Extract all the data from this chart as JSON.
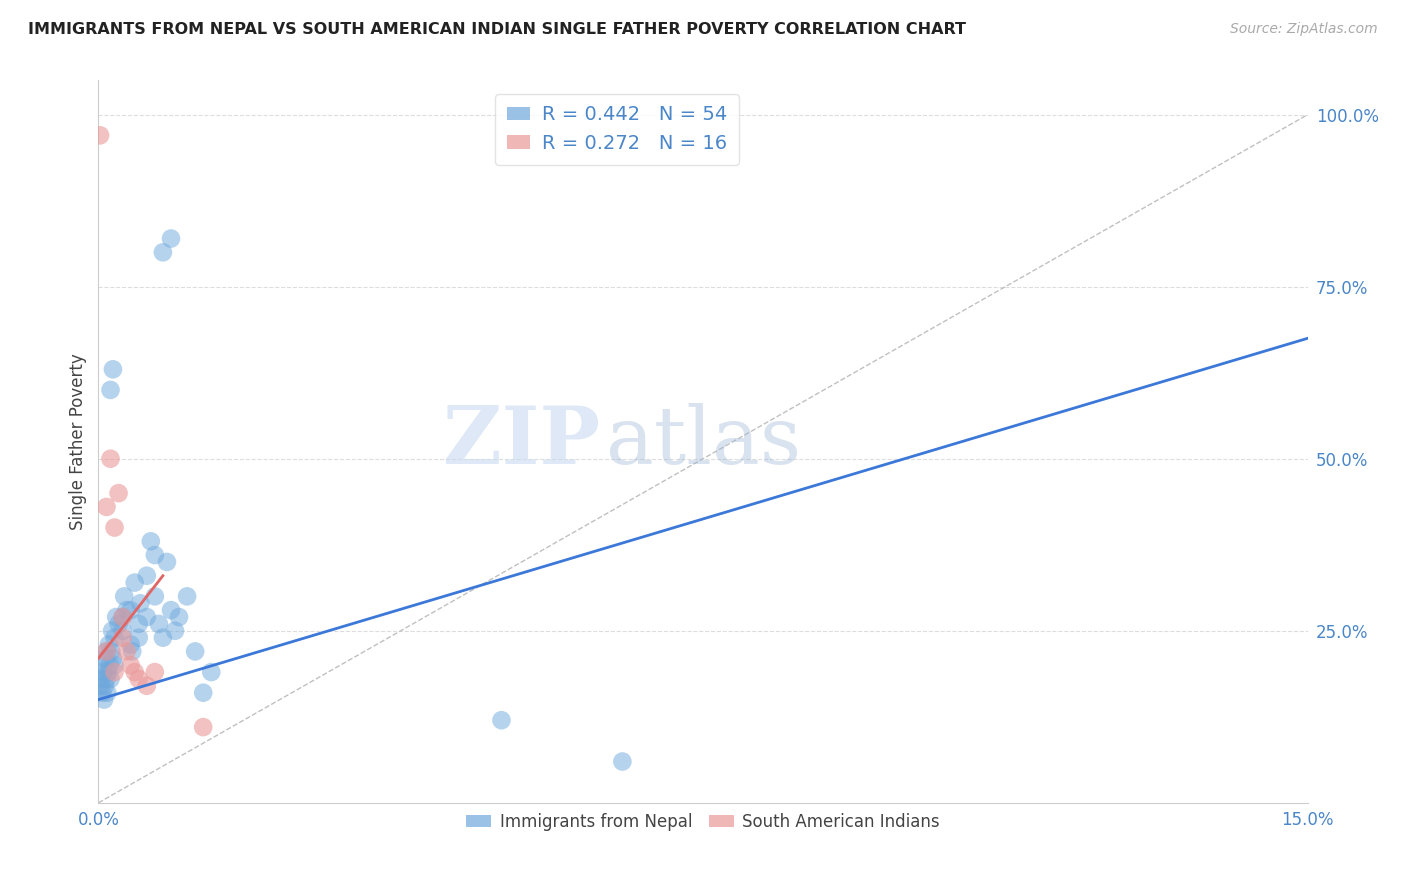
{
  "title": "IMMIGRANTS FROM NEPAL VS SOUTH AMERICAN INDIAN SINGLE FATHER POVERTY CORRELATION CHART",
  "source": "Source: ZipAtlas.com",
  "ylabel": "Single Father Poverty",
  "xlim": [
    0.0,
    0.15
  ],
  "ylim": [
    0.0,
    1.05
  ],
  "yticks": [
    0.0,
    0.25,
    0.5,
    0.75,
    1.0
  ],
  "ytick_labels": [
    "",
    "25.0%",
    "50.0%",
    "75.0%",
    "100.0%"
  ],
  "xticks": [
    0.0,
    0.05,
    0.1,
    0.15
  ],
  "xtick_labels": [
    "0.0%",
    "",
    "",
    "15.0%"
  ],
  "nepal_color": "#6fa8dc",
  "sa_indian_color": "#ea9999",
  "nepal_R": 0.442,
  "nepal_N": 54,
  "sa_indian_R": 0.272,
  "sa_indian_N": 16,
  "legend_label_1": "Immigrants from Nepal",
  "legend_label_2": "South American Indians",
  "watermark_zip": "ZIP",
  "watermark_atlas": "atlas",
  "nepal_points": [
    [
      0.0002,
      0.17
    ],
    [
      0.0003,
      0.2
    ],
    [
      0.0004,
      0.18
    ],
    [
      0.0005,
      0.16
    ],
    [
      0.0006,
      0.19
    ],
    [
      0.0007,
      0.15
    ],
    [
      0.0008,
      0.17
    ],
    [
      0.0009,
      0.21
    ],
    [
      0.001,
      0.22
    ],
    [
      0.001,
      0.18
    ],
    [
      0.0011,
      0.16
    ],
    [
      0.0012,
      0.19
    ],
    [
      0.0013,
      0.23
    ],
    [
      0.0014,
      0.2
    ],
    [
      0.0015,
      0.18
    ],
    [
      0.0016,
      0.22
    ],
    [
      0.0017,
      0.25
    ],
    [
      0.0018,
      0.21
    ],
    [
      0.002,
      0.24
    ],
    [
      0.002,
      0.2
    ],
    [
      0.0022,
      0.27
    ],
    [
      0.0025,
      0.26
    ],
    [
      0.003,
      0.27
    ],
    [
      0.003,
      0.25
    ],
    [
      0.0032,
      0.3
    ],
    [
      0.0035,
      0.28
    ],
    [
      0.004,
      0.23
    ],
    [
      0.004,
      0.28
    ],
    [
      0.0042,
      0.22
    ],
    [
      0.0045,
      0.32
    ],
    [
      0.005,
      0.26
    ],
    [
      0.005,
      0.24
    ],
    [
      0.0052,
      0.29
    ],
    [
      0.006,
      0.33
    ],
    [
      0.006,
      0.27
    ],
    [
      0.0065,
      0.38
    ],
    [
      0.007,
      0.36
    ],
    [
      0.007,
      0.3
    ],
    [
      0.0075,
      0.26
    ],
    [
      0.008,
      0.24
    ],
    [
      0.0085,
      0.35
    ],
    [
      0.009,
      0.28
    ],
    [
      0.0095,
      0.25
    ],
    [
      0.01,
      0.27
    ],
    [
      0.011,
      0.3
    ],
    [
      0.012,
      0.22
    ],
    [
      0.013,
      0.16
    ],
    [
      0.014,
      0.19
    ],
    [
      0.0015,
      0.6
    ],
    [
      0.0018,
      0.63
    ],
    [
      0.008,
      0.8
    ],
    [
      0.009,
      0.82
    ],
    [
      0.05,
      0.12
    ],
    [
      0.065,
      0.06
    ]
  ],
  "sa_indian_points": [
    [
      0.0002,
      0.97
    ],
    [
      0.001,
      0.43
    ],
    [
      0.0015,
      0.5
    ],
    [
      0.002,
      0.4
    ],
    [
      0.0025,
      0.45
    ],
    [
      0.003,
      0.27
    ],
    [
      0.003,
      0.24
    ],
    [
      0.0035,
      0.22
    ],
    [
      0.004,
      0.2
    ],
    [
      0.0045,
      0.19
    ],
    [
      0.005,
      0.18
    ],
    [
      0.006,
      0.17
    ],
    [
      0.007,
      0.19
    ],
    [
      0.013,
      0.11
    ],
    [
      0.001,
      0.22
    ],
    [
      0.002,
      0.19
    ]
  ],
  "nepal_line_intercept": 0.15,
  "nepal_line_slope": 3.5,
  "sa_line_intercept": 0.21,
  "sa_line_slope": 15.0,
  "sa_line_xmin": 0.0,
  "sa_line_xmax": 0.008,
  "nepal_line_color": "#3c78d8",
  "sa_line_color": "#e06666",
  "ref_line_color": "#c0c0c0",
  "grid_color": "#dddddd",
  "tick_color": "#4a86c8",
  "axis_color": "#cccccc",
  "title_color": "#222222",
  "source_color": "#aaaaaa",
  "background_color": "#ffffff"
}
